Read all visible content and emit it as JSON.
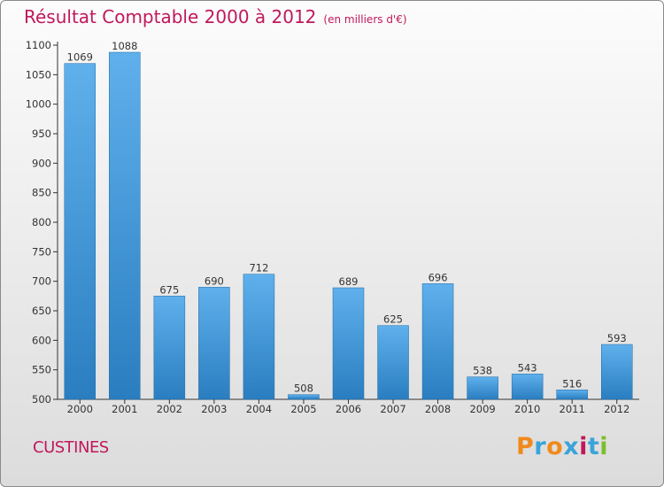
{
  "header": {
    "title": "Résultat Comptable 2000 à 2012",
    "subtitle": "(en milliers d'€)"
  },
  "footer": {
    "city": "CUSTINES",
    "logo_text": "Proxiti"
  },
  "colors": {
    "title": "#c0185b",
    "bar_top": "#5fb0ec",
    "bar_bottom": "#2a7ec0",
    "logo_letters": [
      "#f08a1c",
      "#3aa4d9",
      "#f08a1c",
      "#3aa4d9",
      "#c0185b",
      "#3aa4d9",
      "#7cbf2a"
    ]
  },
  "chart_data": {
    "type": "bar",
    "categories": [
      "2000",
      "2001",
      "2002",
      "2003",
      "2004",
      "2005",
      "2006",
      "2007",
      "2008",
      "2009",
      "2010",
      "2011",
      "2012"
    ],
    "values": [
      1069,
      1088,
      675,
      690,
      712,
      508,
      689,
      625,
      696,
      538,
      543,
      516,
      593
    ],
    "title": "Résultat Comptable 2000 à 2012",
    "ylim": [
      500,
      1100
    ],
    "yticks": [
      500,
      550,
      600,
      650,
      700,
      750,
      800,
      850,
      900,
      950,
      1000,
      1050,
      1100
    ],
    "grid": false,
    "data_labels": true
  }
}
